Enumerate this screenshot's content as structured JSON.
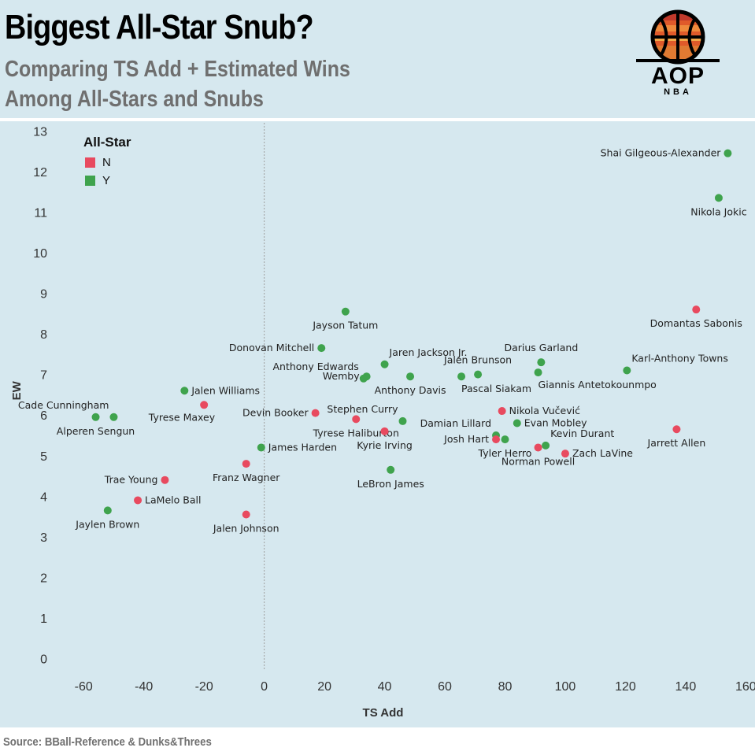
{
  "header": {
    "title": "Biggest All-Star Snub?",
    "subtitle_line1": "Comparing TS Add + Estimated Wins",
    "subtitle_line2": "Among All-Stars and Snubs",
    "logo_text": "AOP",
    "logo_sub": "NBA"
  },
  "footer": {
    "source": "Source: BBall-Reference & Dunks&Threes"
  },
  "colors": {
    "N": "#e84a5f",
    "Y": "#3fa34d",
    "background": "#d6e8ef",
    "zero_line": "#a0a0a0"
  },
  "chart_data": {
    "type": "scatter",
    "xlabel": "TS Add",
    "ylabel": "EW",
    "xlim": [
      -70,
      162
    ],
    "ylim": [
      -0.3,
      13.2
    ],
    "xticks": [
      -60,
      -40,
      -20,
      0,
      20,
      40,
      60,
      80,
      100,
      120,
      140,
      160
    ],
    "yticks": [
      0,
      1,
      2,
      3,
      4,
      5,
      6,
      7,
      8,
      9,
      10,
      11,
      12,
      13
    ],
    "grid": false,
    "legend": {
      "title": "All-Star",
      "placement": "top-left",
      "entries": [
        "N",
        "Y"
      ]
    },
    "points": [
      {
        "name": "Shai Gilgeous-Alexander",
        "x": 154,
        "y": 12.45,
        "allstar": "Y",
        "pos": "left"
      },
      {
        "name": "Nikola Jokic",
        "x": 151,
        "y": 11.35,
        "allstar": "Y",
        "pos": "below"
      },
      {
        "name": "Domantas Sabonis",
        "x": 143.5,
        "y": 8.6,
        "allstar": "N",
        "pos": "below"
      },
      {
        "name": "Karl-Anthony Towns",
        "x": 120.5,
        "y": 7.1,
        "allstar": "Y",
        "pos": "aboveright"
      },
      {
        "name": "Jarrett Allen",
        "x": 137,
        "y": 5.65,
        "allstar": "N",
        "pos": "below"
      },
      {
        "name": "Darius Garland",
        "x": 92,
        "y": 7.3,
        "allstar": "Y",
        "pos": "above"
      },
      {
        "name": "Giannis Antetokounmpo",
        "x": 91,
        "y": 7.05,
        "allstar": "Y",
        "pos": "belowright"
      },
      {
        "name": "Jalen Brunson",
        "x": 71,
        "y": 7.0,
        "allstar": "Y",
        "pos": "above"
      },
      {
        "name": "Pascal Siakam",
        "x": 65.5,
        "y": 6.95,
        "allstar": "Y",
        "pos": "belowright"
      },
      {
        "name": "Anthony Davis",
        "x": 48.5,
        "y": 6.95,
        "allstar": "Y",
        "pos": "below"
      },
      {
        "name": "Jaren Jackson Jr.",
        "x": 40,
        "y": 7.25,
        "allstar": "Y",
        "pos": "aboveright"
      },
      {
        "name": "Wemby",
        "x": 34,
        "y": 6.95,
        "allstar": "Y",
        "pos": "left"
      },
      {
        "name": "Anthony Edwards",
        "x": 33,
        "y": 6.9,
        "allstar": "Y",
        "pos": "aboveleft"
      },
      {
        "name": "Jayson Tatum",
        "x": 27,
        "y": 8.55,
        "allstar": "Y",
        "pos": "below"
      },
      {
        "name": "Donovan Mitchell",
        "x": 19,
        "y": 7.65,
        "allstar": "Y",
        "pos": "left"
      },
      {
        "name": "Devin Booker",
        "x": 17,
        "y": 6.05,
        "allstar": "N",
        "pos": "left"
      },
      {
        "name": "Tyrese Haliburton",
        "x": 30.5,
        "y": 5.9,
        "allstar": "N",
        "pos": "below"
      },
      {
        "name": "Kyrie Irving",
        "x": 40,
        "y": 5.6,
        "allstar": "N",
        "pos": "below"
      },
      {
        "name": "Stephen Curry",
        "x": 46,
        "y": 5.85,
        "allstar": "Y",
        "pos": "aboveleft"
      },
      {
        "name": "LeBron James",
        "x": 42,
        "y": 4.65,
        "allstar": "Y",
        "pos": "below"
      },
      {
        "name": "Nikola Vučević",
        "x": 79,
        "y": 6.1,
        "allstar": "N",
        "pos": "right"
      },
      {
        "name": "Damian Lillard",
        "x": 77,
        "y": 5.5,
        "allstar": "Y",
        "pos": "aboveleft"
      },
      {
        "name": "Evan Mobley",
        "x": 84,
        "y": 5.8,
        "allstar": "Y",
        "pos": "right"
      },
      {
        "name": "Josh Hart",
        "x": 77,
        "y": 5.4,
        "allstar": "N",
        "pos": "left"
      },
      {
        "name": "Tyler Herro",
        "x": 80,
        "y": 5.4,
        "allstar": "Y",
        "pos": "below"
      },
      {
        "name": "Kevin Durant",
        "x": 93.5,
        "y": 5.25,
        "allstar": "Y",
        "pos": "aboveright"
      },
      {
        "name": "Norman Powell",
        "x": 91,
        "y": 5.2,
        "allstar": "N",
        "pos": "below"
      },
      {
        "name": "Zach LaVine",
        "x": 100,
        "y": 5.05,
        "allstar": "N",
        "pos": "right"
      },
      {
        "name": "Jalen Williams",
        "x": -26.5,
        "y": 6.6,
        "allstar": "Y",
        "pos": "right"
      },
      {
        "name": "Tyrese Maxey",
        "x": -20,
        "y": 6.25,
        "allstar": "N",
        "pos": "belowleft"
      },
      {
        "name": "Cade Cunningham",
        "x": -50,
        "y": 5.95,
        "allstar": "Y",
        "pos": "aboveleft"
      },
      {
        "name": "Alperen Sengun",
        "x": -56,
        "y": 5.95,
        "allstar": "Y",
        "pos": "below"
      },
      {
        "name": "James Harden",
        "x": -1,
        "y": 5.2,
        "allstar": "Y",
        "pos": "right"
      },
      {
        "name": "Franz Wagner",
        "x": -6,
        "y": 4.8,
        "allstar": "N",
        "pos": "below"
      },
      {
        "name": "Trae Young",
        "x": -33,
        "y": 4.4,
        "allstar": "N",
        "pos": "left"
      },
      {
        "name": "LaMelo Ball",
        "x": -42,
        "y": 3.9,
        "allstar": "N",
        "pos": "right"
      },
      {
        "name": "Jaylen Brown",
        "x": -52,
        "y": 3.65,
        "allstar": "Y",
        "pos": "below"
      },
      {
        "name": "Jalen Johnson",
        "x": -6,
        "y": 3.55,
        "allstar": "N",
        "pos": "below"
      }
    ]
  }
}
